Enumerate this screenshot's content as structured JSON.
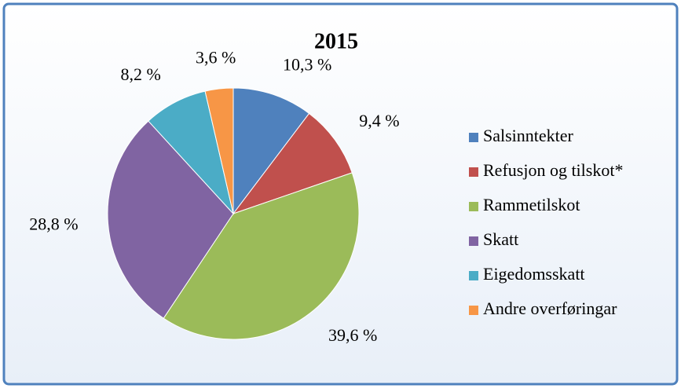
{
  "chart_data": {
    "type": "pie",
    "title": "2015",
    "categories": [
      "Salsinntekter",
      "Refusjon og tilskot*",
      "Rammetilskot",
      "Skatt",
      "Eigedomsskatt",
      "Andre overføringar"
    ],
    "values": [
      10.3,
      9.4,
      39.6,
      28.8,
      8.2,
      3.6
    ],
    "value_labels": [
      "10,3 %",
      "9,4 %",
      "39,6 %",
      "28,8 %",
      "8,2 %",
      "3,6 %"
    ],
    "colors": [
      "#4f81bd",
      "#c0504d",
      "#9bbb59",
      "#8064a2",
      "#4bacc6",
      "#f79646"
    ],
    "legend": "right"
  }
}
